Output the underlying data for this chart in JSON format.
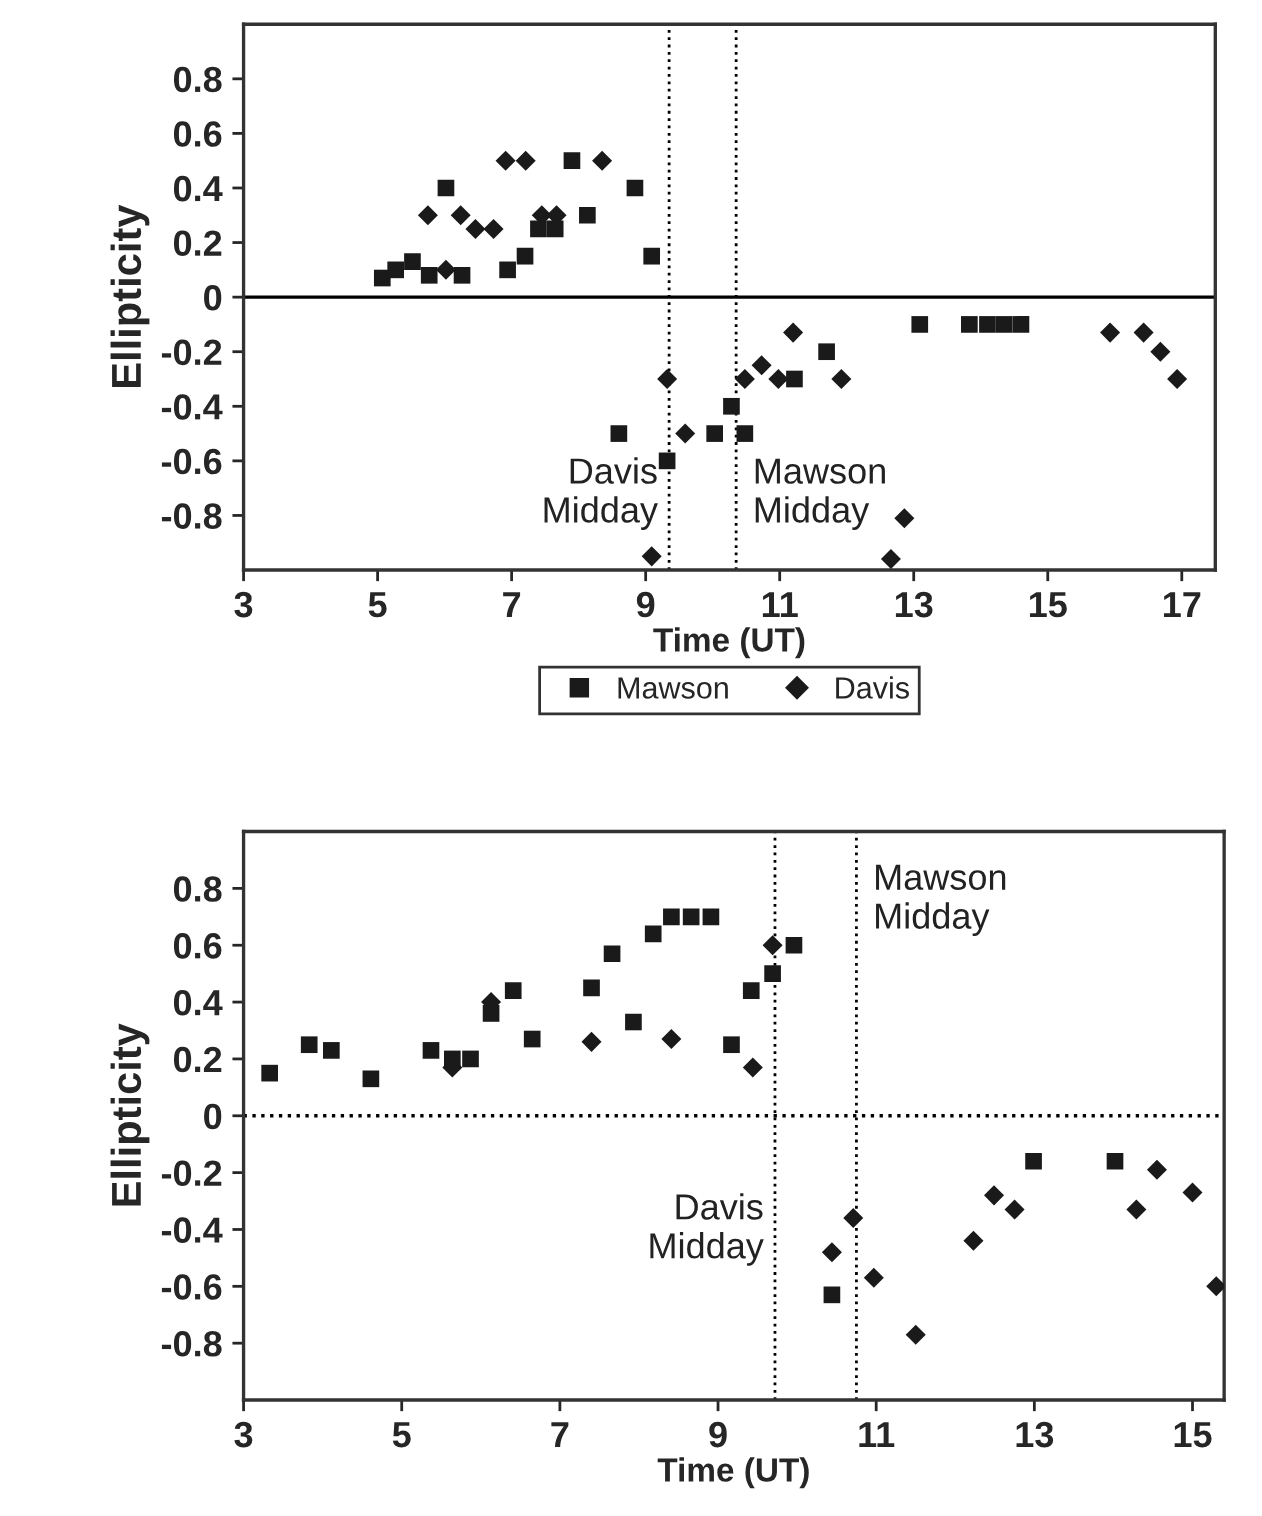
{
  "chart_data": [
    {
      "type": "scatter",
      "xlabel": "Time (UT)",
      "ylabel": "Ellipticity",
      "xlim": [
        3,
        17.5
      ],
      "ylim": [
        -1,
        1
      ],
      "xticks": [
        3,
        5,
        7,
        9,
        11,
        13,
        15,
        17
      ],
      "yticks": [
        -0.8,
        -0.6,
        -0.4,
        -0.2,
        0,
        0.2,
        0.4,
        0.6,
        0.8
      ],
      "grid": false,
      "legend": "bottom",
      "series": [
        {
          "name": "Mawson",
          "color": "#1a1a1a",
          "marker": "square",
          "x": [
            5.07,
            5.27,
            5.52,
            5.77,
            6.02,
            6.26,
            6.94,
            7.2,
            7.4,
            7.65,
            7.9,
            8.13,
            8.84,
            9.09,
            8.6,
            9.32,
            10.03,
            10.28,
            10.48,
            11.22,
            11.7,
            13.09,
            13.83,
            14.1,
            14.35,
            14.6
          ],
          "values": [
            0.07,
            0.1,
            0.13,
            0.08,
            0.4,
            0.08,
            0.1,
            0.15,
            0.25,
            0.25,
            0.5,
            0.3,
            0.4,
            0.15,
            -0.5,
            -0.6,
            -0.5,
            -0.4,
            -0.5,
            -0.3,
            -0.2,
            -0.1,
            -0.1,
            -0.1,
            -0.1,
            -0.1
          ]
        },
        {
          "name": "Davis",
          "color": "#1a1a1a",
          "marker": "diamond",
          "x": [
            5.75,
            6.02,
            6.24,
            6.46,
            6.73,
            6.91,
            7.21,
            7.45,
            7.67,
            8.35,
            9.09,
            9.32,
            9.59,
            10.48,
            10.73,
            10.98,
            11.2,
            11.92,
            12.66,
            12.86,
            15.93,
            16.43,
            16.68,
            16.93
          ],
          "values": [
            0.3,
            0.1,
            0.3,
            0.25,
            0.25,
            0.5,
            0.5,
            0.3,
            0.3,
            0.5,
            -0.95,
            -0.3,
            -0.5,
            -0.3,
            -0.25,
            -0.3,
            -0.13,
            -0.3,
            -0.96,
            -0.81,
            -0.13,
            -0.13,
            -0.2,
            -0.3
          ]
        }
      ],
      "ref_lines": [
        {
          "axis": "y",
          "value": 0,
          "line_style": "solid"
        },
        {
          "axis": "x",
          "value": 9.35,
          "line_style": "dotted",
          "label": "Davis\nMidday"
        },
        {
          "axis": "x",
          "value": 10.35,
          "line_style": "dotted",
          "label": "Mawson\nMidday"
        }
      ]
    },
    {
      "type": "scatter",
      "xlabel": "Time (UT)",
      "ylabel": "Ellipticity",
      "xlim": [
        3,
        15.4
      ],
      "ylim": [
        -1,
        1
      ],
      "xticks": [
        3,
        5,
        7,
        9,
        11,
        13,
        15
      ],
      "yticks": [
        -0.8,
        -0.6,
        -0.4,
        -0.2,
        0,
        0.2,
        0.4,
        0.6,
        0.8
      ],
      "grid": false,
      "series": [
        {
          "color": "#1a1a1a",
          "marker": "square",
          "x": [
            3.33,
            3.83,
            4.11,
            4.61,
            5.37,
            5.64,
            5.87,
            6.13,
            6.41,
            6.65,
            7.4,
            7.66,
            7.93,
            8.18,
            8.41,
            8.66,
            8.91,
            9.17,
            9.42,
            9.69,
            9.96,
            10.44,
            12.99,
            14.02
          ],
          "values": [
            0.15,
            0.25,
            0.23,
            0.13,
            0.23,
            0.2,
            0.2,
            0.36,
            0.44,
            0.27,
            0.45,
            0.57,
            0.33,
            0.64,
            0.7,
            0.7,
            0.7,
            0.25,
            0.44,
            0.5,
            0.6,
            -0.63,
            -0.16,
            -0.16
          ]
        },
        {
          "color": "#1a1a1a",
          "marker": "diamond",
          "x": [
            5.64,
            6.13,
            7.4,
            8.41,
            9.44,
            9.69,
            10.44,
            10.71,
            10.97,
            11.5,
            12.23,
            12.49,
            12.75,
            14.29,
            14.55,
            15.0,
            15.3
          ],
          "values": [
            0.17,
            0.4,
            0.26,
            0.27,
            0.17,
            0.6,
            -0.48,
            -0.36,
            -0.57,
            -0.77,
            -0.44,
            -0.28,
            -0.33,
            -0.33,
            -0.19,
            -0.27,
            -0.6
          ]
        }
      ],
      "ref_lines": [
        {
          "axis": "y",
          "value": 0,
          "line_style": "dotted"
        },
        {
          "axis": "x",
          "value": 9.72,
          "line_style": "dotted",
          "label": "Davis\nMidday"
        },
        {
          "axis": "x",
          "value": 10.75,
          "line_style": "dotted",
          "label": "Mawson\nMidday"
        }
      ]
    }
  ]
}
